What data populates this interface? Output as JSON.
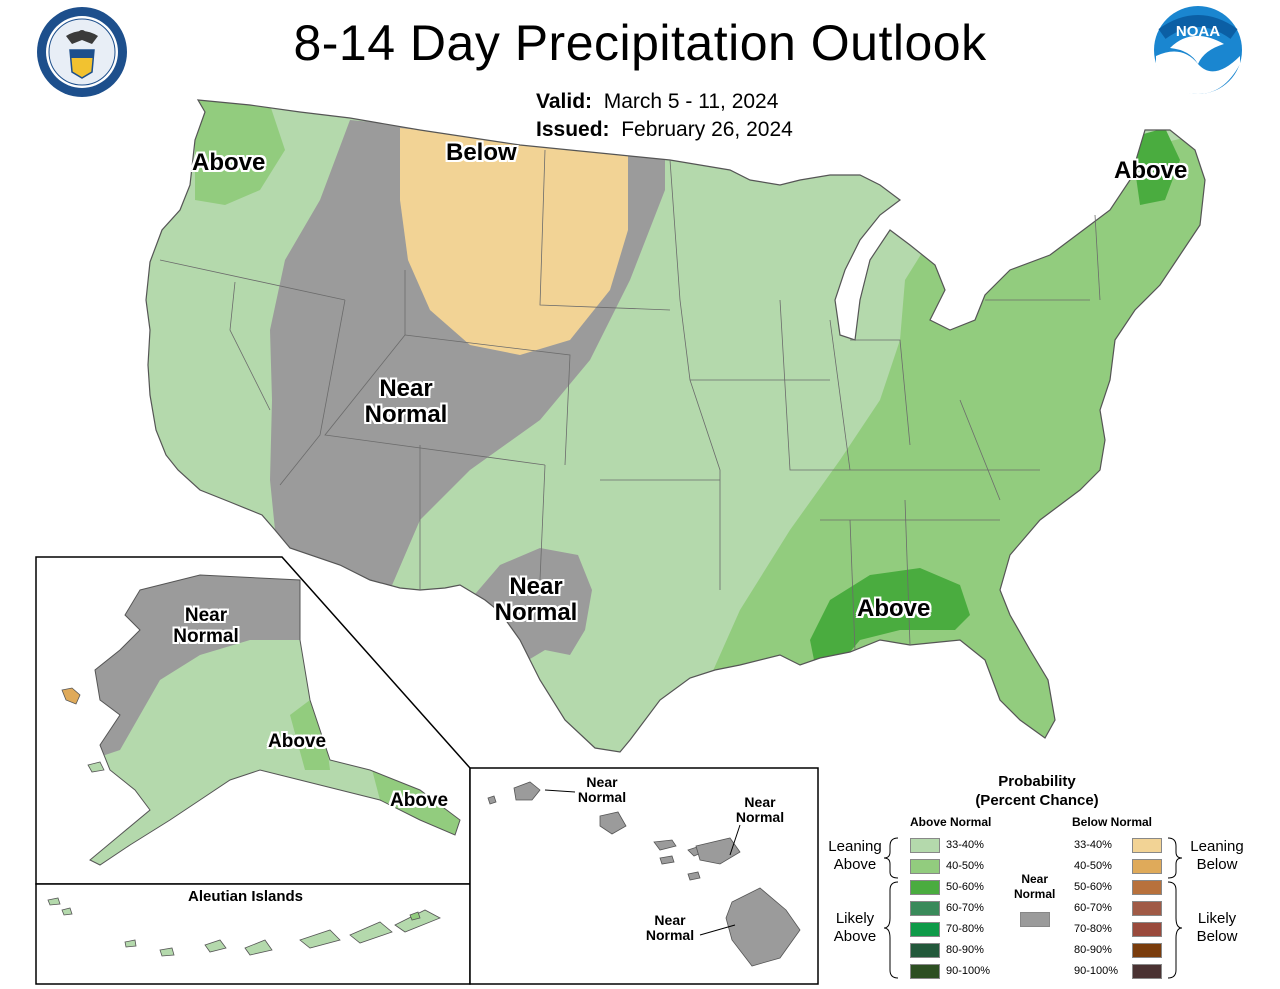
{
  "title": "8-14 Day Precipitation Outlook",
  "valid_label": "Valid:",
  "valid_value": "March 5 - 11, 2024",
  "issued_label": "Issued:",
  "issued_value": "February 26, 2024",
  "logos": {
    "left": "doc-seal-icon",
    "right": "noaa-logo-icon"
  },
  "colors": {
    "above_33_40": "#b4d9ac",
    "above_40_50": "#92cc7e",
    "above_50_60": "#4aac3f",
    "near_normal": "#9b9b9b",
    "below_33_40": "#f2d395"
  },
  "labels": {
    "conus_above_nw": "Above",
    "conus_below_north": "Below",
    "conus_near_normal_west_1": "Near",
    "conus_near_normal_west_2": "Normal",
    "conus_above_ne": "Above",
    "conus_near_normal_tx_1": "Near",
    "conus_near_normal_tx_2": "Normal",
    "conus_above_gulf": "Above",
    "ak_near_normal_1": "Near",
    "ak_near_normal_2": "Normal",
    "ak_above_south": "Above",
    "ak_above_panhandle": "Above",
    "aleutian_title": "Aleutian Islands",
    "hi_near_normal_a_1": "Near",
    "hi_near_normal_a_2": "Normal",
    "hi_near_normal_b_1": "Near",
    "hi_near_normal_b_2": "Normal",
    "hi_near_normal_c_1": "Near",
    "hi_near_normal_c_2": "Normal"
  },
  "legend": {
    "title_1": "Probability",
    "title_2": "(Percent Chance)",
    "above_header": "Above Normal",
    "below_header": "Below Normal",
    "near_header_1": "Near",
    "near_header_2": "Normal",
    "above_items": [
      {
        "label": "33-40%",
        "color": "#b4d9ac"
      },
      {
        "label": "40-50%",
        "color": "#92cc7e"
      },
      {
        "label": "50-60%",
        "color": "#4aac3f"
      },
      {
        "label": "60-70%",
        "color": "#3a8a5a"
      },
      {
        "label": "70-80%",
        "color": "#0e9a48"
      },
      {
        "label": "80-90%",
        "color": "#22583a"
      },
      {
        "label": "90-100%",
        "color": "#2d4f22"
      }
    ],
    "below_items": [
      {
        "label": "33-40%",
        "color": "#f2d395"
      },
      {
        "label": "40-50%",
        "color": "#dfaa5a"
      },
      {
        "label": "50-60%",
        "color": "#b8713c"
      },
      {
        "label": "60-70%",
        "color": "#a05a46"
      },
      {
        "label": "70-80%",
        "color": "#9a4a3c"
      },
      {
        "label": "80-90%",
        "color": "#7a3c0c"
      },
      {
        "label": "90-100%",
        "color": "#4a3232"
      }
    ],
    "near_color": "#9b9b9b",
    "leaning_above_1": "Leaning",
    "leaning_above_2": "Above",
    "likely_above_1": "Likely",
    "likely_above_2": "Above",
    "leaning_below_1": "Leaning",
    "leaning_below_2": "Below",
    "likely_below_1": "Likely",
    "likely_below_2": "Below"
  }
}
